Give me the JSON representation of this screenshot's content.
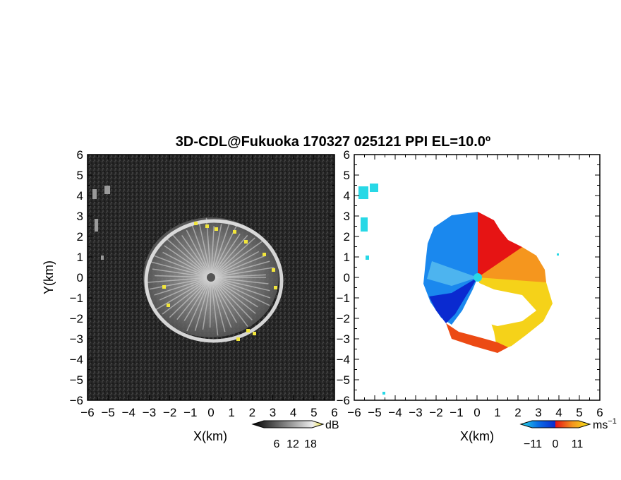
{
  "chart_data": [
    {
      "type": "heatmap",
      "title": "3D-CDL@Fukuoka 170327 025121 PPI EL=10.0º",
      "xlabel": "X(km)",
      "ylabel": "Y(km)",
      "xlim": [
        -6,
        6
      ],
      "ylim": [
        -6,
        6
      ],
      "x_ticks": [
        "−6",
        "−5",
        "−4",
        "−3",
        "−2",
        "−1",
        "0",
        "1",
        "2",
        "3",
        "4",
        "5",
        "6"
      ],
      "y_ticks": [
        "6",
        "5",
        "4",
        "3",
        "2",
        "1",
        "0",
        "−1",
        "−2",
        "−3",
        "−4",
        "−5",
        "−6"
      ],
      "colorbar": {
        "unit": "dB",
        "ticks": [
          "6",
          "12",
          "18"
        ],
        "colormap": "grayscale to yellow"
      },
      "radar_center_km": [
        0,
        0
      ],
      "echo_radius_km": 3.1,
      "grid": false
    },
    {
      "type": "heatmap",
      "xlabel": "X(km)",
      "xlim": [
        -6,
        6
      ],
      "ylim": [
        -6,
        6
      ],
      "x_ticks": [
        "−6",
        "−5",
        "−4",
        "−3",
        "−2",
        "−1",
        "0",
        "1",
        "2",
        "3",
        "4",
        "5",
        "6"
      ],
      "y_ticks": [
        "6",
        "5",
        "4",
        "3",
        "2",
        "1",
        "0",
        "−1",
        "−2",
        "−3",
        "−4",
        "−5",
        "−6"
      ],
      "colorbar": {
        "unit": "ms",
        "unit_exp": "−1",
        "ticks": [
          "−11",
          "0",
          "11"
        ],
        "colormap": "blue-cyan-red-yellow"
      },
      "grid": false
    }
  ],
  "colors": {
    "background": "#ffffff",
    "panel_dark": "#262626",
    "echo_edge_yellow": "#f2e63c",
    "vel_blue": "#0a6ee6",
    "vel_cyan": "#28d8e6",
    "vel_red": "#e61414",
    "vel_orange": "#f5961e",
    "vel_yellow": "#f5e619"
  }
}
